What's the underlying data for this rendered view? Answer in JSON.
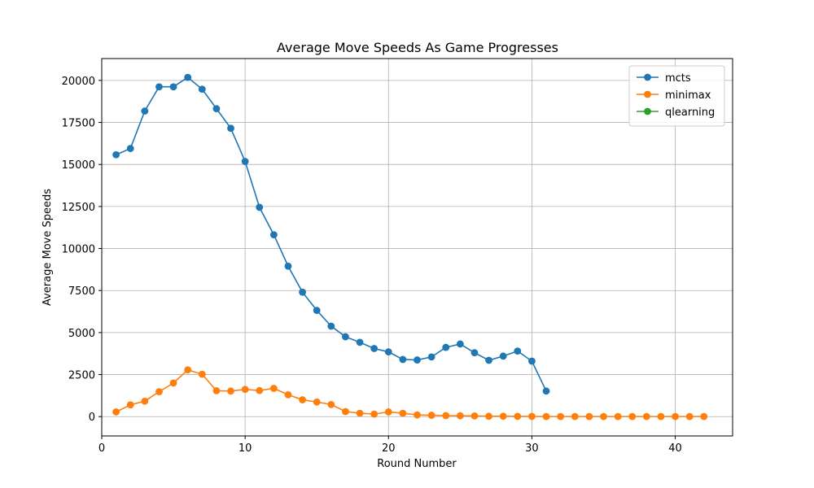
{
  "chart_data": {
    "type": "line",
    "title": "Average Move Speeds As Game Progresses",
    "xlabel": "Round Number",
    "ylabel": "Average Move Speeds",
    "xlim": [
      0,
      44
    ],
    "ylim": [
      -1150,
      21300
    ],
    "xticks": [
      0,
      10,
      20,
      30,
      40
    ],
    "yticks": [
      0,
      2500,
      5000,
      7500,
      10000,
      12500,
      15000,
      17500,
      20000
    ],
    "grid": true,
    "legend_position": "top-right",
    "series": [
      {
        "name": "mcts",
        "color": "#1f77b4",
        "x": [
          1,
          2,
          3,
          4,
          5,
          6,
          7,
          8,
          9,
          10,
          11,
          12,
          13,
          14,
          15,
          16,
          17,
          18,
          19,
          20,
          21,
          22,
          23,
          24,
          25,
          26,
          27,
          28,
          29,
          30,
          31
        ],
        "values": [
          15580,
          15950,
          18180,
          19620,
          19620,
          20180,
          19480,
          18320,
          17150,
          15180,
          12450,
          10820,
          8950,
          7400,
          6320,
          5380,
          4750,
          4420,
          4050,
          3850,
          3400,
          3370,
          3550,
          4120,
          4320,
          3800,
          3350,
          3600,
          3900,
          3300,
          1520
        ]
      },
      {
        "name": "minimax",
        "color": "#ff7f0e",
        "x": [
          1,
          2,
          3,
          4,
          5,
          6,
          7,
          8,
          9,
          10,
          11,
          12,
          13,
          14,
          15,
          16,
          17,
          18,
          19,
          20,
          21,
          22,
          23,
          24,
          25,
          26,
          27,
          28,
          29,
          30,
          31,
          32,
          33,
          34,
          35,
          36,
          37,
          38,
          39,
          40,
          41,
          42
        ],
        "values": [
          280,
          700,
          920,
          1480,
          2000,
          2780,
          2520,
          1540,
          1520,
          1620,
          1550,
          1680,
          1300,
          1000,
          870,
          720,
          300,
          200,
          150,
          280,
          200,
          100,
          80,
          60,
          50,
          40,
          20,
          20,
          15,
          10,
          5,
          5,
          5,
          5,
          5,
          5,
          5,
          5,
          5,
          5,
          5,
          5
        ]
      },
      {
        "name": "qlearning",
        "color": "#2ca02c",
        "x": [],
        "values": []
      }
    ]
  }
}
